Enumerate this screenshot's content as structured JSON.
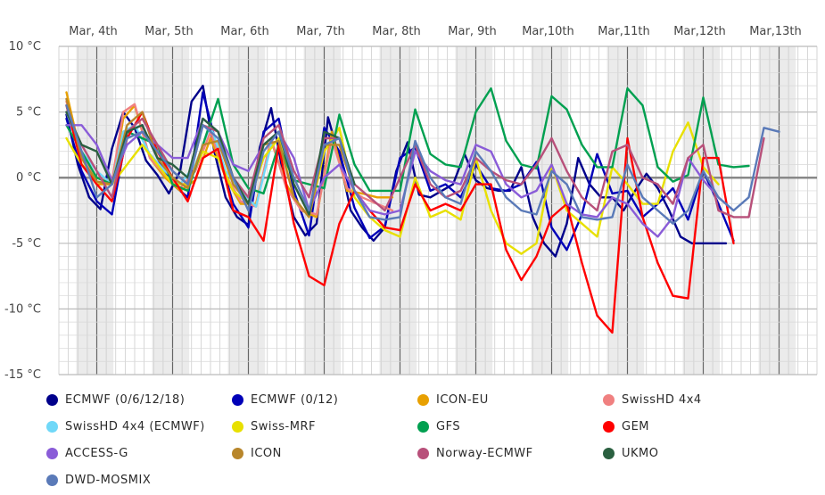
{
  "chart_data": {
    "type": "line",
    "title": "",
    "xlabel": "",
    "ylabel": "",
    "x_tick_labels": [
      "Mar, 4th",
      "Mar, 5th",
      "Mar, 6th",
      "Mar, 7th",
      "Mar, 8th",
      "Mar, 9th",
      "Mar,10th",
      "Mar,11th",
      "Mar,12th",
      "Mar,13th"
    ],
    "y_tick_labels": [
      "10 °C",
      "5 °C",
      "0 °C",
      "-5 °C",
      "-10 °C",
      "-15 °C"
    ],
    "y_ticks": [
      10,
      5,
      0,
      -5,
      -10,
      -15
    ],
    "xlim_days": [
      3.5,
      13.5
    ],
    "ylim": [
      -15,
      10
    ],
    "grid": true,
    "legend_position": "bottom",
    "series": [
      {
        "name": "ECMWF (0/6/12/18)",
        "color": "#00008b",
        "x": [
          3.6,
          3.75,
          3.9,
          4.05,
          4.2,
          4.35,
          4.5,
          4.65,
          4.8,
          4.95,
          5.1,
          5.25,
          5.4,
          5.55,
          5.7,
          5.85,
          6.0,
          6.15,
          6.3,
          6.45,
          6.6,
          6.75,
          6.9,
          7.05,
          7.2,
          7.35,
          7.5,
          7.65,
          7.8,
          7.95,
          8.1,
          8.25,
          8.4,
          8.55,
          8.7,
          8.85,
          9.0,
          9.15,
          9.3,
          9.45,
          9.6,
          9.75,
          9.9,
          10.05,
          10.2,
          10.35,
          10.5,
          10.65,
          10.8,
          10.95,
          11.1,
          11.25,
          11.4,
          11.55,
          11.7,
          11.85,
          12.0,
          12.15,
          12.3
        ],
        "y": [
          4.8,
          1.0,
          -1.5,
          -2.4,
          2.2,
          5.0,
          3.8,
          1.3,
          0.2,
          -1.2,
          0.5,
          5.8,
          7.0,
          2.0,
          -1.5,
          -3.0,
          -3.6,
          2.3,
          5.3,
          0.5,
          -3.0,
          -4.4,
          -3.5,
          4.6,
          1.5,
          -2.5,
          -3.8,
          -4.8,
          -3.8,
          0.5,
          2.7,
          -1.3,
          -1.5,
          -1.0,
          -0.5,
          1.8,
          -0.2,
          -0.8,
          -1.0,
          -1.0,
          0.8,
          -3.0,
          -5.0,
          -6.0,
          -3.5,
          1.5,
          -0.5,
          -1.5,
          -1.5,
          -2.5,
          -1.0,
          0.3,
          -0.8,
          -2.5,
          -4.5,
          -5.0,
          -5.0,
          -5.0,
          -5.0
        ]
      },
      {
        "name": "ECMWF (0/12)",
        "color": "#0000b8",
        "x": [
          3.6,
          3.8,
          4.0,
          4.2,
          4.4,
          4.6,
          4.8,
          5.0,
          5.2,
          5.4,
          5.6,
          5.8,
          6.0,
          6.2,
          6.4,
          6.6,
          6.8,
          7.0,
          7.2,
          7.4,
          7.6,
          7.8,
          8.0,
          8.2,
          8.4,
          8.6,
          8.8,
          9.0,
          9.2,
          9.4,
          9.6,
          9.8,
          10.0,
          10.2,
          10.4,
          10.6,
          10.8,
          11.0,
          11.2,
          11.4,
          11.6,
          11.8,
          12.0,
          12.2,
          12.4
        ],
        "y": [
          4.5,
          0.5,
          -1.8,
          -2.8,
          3.5,
          4.0,
          1.5,
          -0.5,
          -1.5,
          6.5,
          2.0,
          -2.0,
          -3.8,
          3.5,
          4.5,
          -1.0,
          -4.4,
          3.8,
          2.0,
          -2.3,
          -4.6,
          -3.7,
          1.5,
          2.3,
          -1.0,
          -0.5,
          -1.5,
          1.0,
          -0.8,
          -1.0,
          -0.5,
          1.2,
          -3.8,
          -5.5,
          -2.8,
          1.8,
          -1.2,
          -1.0,
          -3.0,
          -2.0,
          -0.8,
          -3.2,
          0.5,
          -2.0,
          -4.8
        ]
      },
      {
        "name": "ICON-EU",
        "color": "#e8a000",
        "x": [
          3.6,
          3.8,
          4.0,
          4.2,
          4.35,
          4.5,
          4.7,
          4.9,
          5.1,
          5.3,
          5.5,
          5.7,
          5.9,
          6.1,
          6.3,
          6.5,
          6.7,
          6.9,
          7.1,
          7.3,
          7.5,
          7.7,
          7.9
        ],
        "y": [
          6.5,
          1.5,
          -0.5,
          -0.5,
          4.5,
          5.5,
          1.5,
          0.0,
          -1.0,
          -0.2,
          3.0,
          0.0,
          -2.0,
          -2.0,
          2.8,
          -0.5,
          -2.5,
          -3.0,
          3.5,
          -1.0,
          -1.2,
          -1.5,
          -1.5
        ]
      },
      {
        "name": "SwissHD 4x4",
        "color": "#f08080",
        "x": [
          3.6,
          3.8,
          4.0,
          4.2,
          4.35,
          4.5,
          4.7,
          4.9,
          5.1,
          5.3,
          5.5,
          5.7,
          5.9,
          6.1,
          6.3,
          6.5,
          6.7,
          6.9,
          7.1,
          7.3,
          7.5,
          7.7,
          7.9
        ],
        "y": [
          5.8,
          1.8,
          0.0,
          -0.3,
          5.0,
          5.6,
          1.5,
          0.2,
          -0.8,
          0.5,
          3.5,
          0.2,
          -1.8,
          -2.2,
          3.0,
          -0.8,
          -2.5,
          -2.8,
          3.0,
          -0.8,
          -1.5,
          -2.0,
          -2.5
        ]
      },
      {
        "name": "SwissHD 4x4 (ECMWF)",
        "color": "#70d8f8",
        "x": [
          3.6,
          3.8,
          4.0,
          4.2,
          4.35,
          4.5,
          4.7,
          4.9,
          5.1,
          5.3,
          5.5,
          5.7,
          5.9,
          6.1,
          6.3
        ],
        "y": [
          5.0,
          2.0,
          0.5,
          -0.5,
          3.5,
          4.0,
          1.8,
          0.5,
          -0.5,
          1.0,
          4.0,
          0.5,
          -1.0,
          -2.2,
          2.5
        ]
      },
      {
        "name": "Swiss-MRF",
        "color": "#e8e000",
        "x": [
          3.6,
          3.8,
          4.0,
          4.2,
          4.4,
          4.6,
          4.8,
          5.0,
          5.2,
          5.4,
          5.6,
          5.8,
          6.0,
          6.2,
          6.4,
          6.6,
          6.8,
          7.0,
          7.2,
          7.4,
          7.6,
          7.8,
          8.0,
          8.2,
          8.4,
          8.6,
          8.8,
          9.0,
          9.2,
          9.4,
          9.6,
          9.8,
          10.0,
          10.2,
          10.4,
          10.6,
          10.8,
          11.0,
          11.2,
          11.4,
          11.6,
          11.8,
          12.0,
          12.2
        ],
        "y": [
          3.0,
          1.0,
          0.0,
          -0.5,
          1.0,
          2.5,
          1.0,
          -0.5,
          -0.5,
          2.0,
          1.5,
          -1.0,
          -2.0,
          1.5,
          3.0,
          -1.5,
          -3.0,
          2.0,
          3.8,
          -1.5,
          -3.0,
          -4.0,
          -4.5,
          0.0,
          -3.0,
          -2.5,
          -3.2,
          1.5,
          -2.5,
          -5.0,
          -5.8,
          -5.0,
          1.0,
          -2.5,
          -3.5,
          -4.5,
          0.8,
          -0.5,
          -2.0,
          -2.0,
          2.0,
          4.2,
          0.8,
          -0.5
        ]
      },
      {
        "name": "GFS",
        "color": "#00a050",
        "x": [
          3.6,
          3.8,
          4.0,
          4.2,
          4.4,
          4.6,
          4.8,
          5.0,
          5.2,
          5.4,
          5.6,
          5.8,
          6.0,
          6.2,
          6.4,
          6.6,
          6.8,
          7.0,
          7.2,
          7.4,
          7.6,
          7.8,
          8.0,
          8.2,
          8.4,
          8.6,
          8.8,
          9.0,
          9.2,
          9.4,
          9.6,
          9.8,
          10.0,
          10.2,
          10.4,
          10.6,
          10.8,
          11.0,
          11.2,
          11.4,
          11.6,
          11.8,
          12.0,
          12.2,
          12.4,
          12.6
        ],
        "y": [
          4.0,
          2.0,
          0.0,
          -0.5,
          3.5,
          3.0,
          2.5,
          -0.5,
          -1.0,
          2.5,
          6.0,
          1.0,
          -0.8,
          -1.2,
          2.5,
          -0.2,
          -0.5,
          -0.8,
          4.8,
          1.0,
          -1.0,
          -1.0,
          -1.0,
          5.2,
          1.8,
          1.0,
          0.8,
          5.0,
          6.8,
          2.8,
          1.0,
          0.7,
          6.2,
          5.2,
          2.5,
          0.8,
          0.8,
          6.8,
          5.5,
          0.8,
          -0.3,
          0.2,
          6.1,
          1.0,
          0.8,
          0.9
        ]
      },
      {
        "name": "GEM",
        "color": "#ff0000",
        "x": [
          3.6,
          3.8,
          4.0,
          4.2,
          4.4,
          4.6,
          4.8,
          5.0,
          5.2,
          5.4,
          5.6,
          5.8,
          6.0,
          6.2,
          6.4,
          6.6,
          6.8,
          7.0,
          7.2,
          7.4,
          7.6,
          7.8,
          8.0,
          8.2,
          8.4,
          8.6,
          8.8,
          9.0,
          9.2,
          9.4,
          9.6,
          9.8,
          10.0,
          10.2,
          10.4,
          10.6,
          10.8,
          11.0,
          11.2,
          11.4,
          11.6,
          11.8,
          12.0,
          12.2,
          12.4
        ],
        "y": [
          5.5,
          1.0,
          -0.5,
          -1.8,
          3.0,
          5.0,
          2.0,
          0.0,
          -1.8,
          1.5,
          2.2,
          -2.5,
          -3.0,
          -4.8,
          2.5,
          -3.5,
          -7.5,
          -8.2,
          -3.5,
          -1.0,
          -2.5,
          -3.8,
          -4.0,
          -0.5,
          -2.5,
          -2.0,
          -2.5,
          -0.5,
          -0.5,
          -5.5,
          -7.8,
          -6.0,
          -3.0,
          -2.0,
          -6.5,
          -10.5,
          -11.8,
          3.0,
          -3.0,
          -6.5,
          -9.0,
          -9.2,
          1.5,
          1.5,
          -5.0
        ]
      },
      {
        "name": "ACCESS-G",
        "color": "#8a5cd8",
        "x": [
          3.6,
          3.8,
          4.0,
          4.2,
          4.4,
          4.6,
          4.8,
          5.0,
          5.2,
          5.4,
          5.6,
          5.8,
          6.0,
          6.2,
          6.4,
          6.6,
          6.8,
          7.0,
          7.2,
          7.4,
          7.6,
          7.8,
          8.0,
          8.2,
          8.4,
          8.6,
          8.8,
          9.0,
          9.2,
          9.4,
          9.6,
          9.8,
          10.0,
          10.2,
          10.4,
          10.6,
          10.8,
          11.0,
          11.2,
          11.4,
          11.6,
          11.8,
          12.0,
          12.2,
          12.4
        ],
        "y": [
          4.0,
          4.0,
          2.5,
          -0.2,
          2.5,
          3.5,
          2.5,
          1.5,
          1.5,
          4.5,
          3.5,
          1.0,
          0.5,
          2.5,
          3.5,
          1.5,
          -2.5,
          0.0,
          1.0,
          -1.0,
          -2.5,
          -2.8,
          -2.5,
          2.0,
          0.5,
          -0.2,
          -0.5,
          2.5,
          2.0,
          -0.5,
          -1.5,
          -1.0,
          1.0,
          -2.0,
          -2.8,
          -3.0,
          -1.5,
          -2.0,
          -3.5,
          -4.5,
          -3.0,
          1.5,
          -0.2,
          -1.5,
          -2.5
        ]
      },
      {
        "name": "ICON",
        "color": "#b8862b",
        "x": [
          3.6,
          3.8,
          4.0,
          4.2,
          4.4,
          4.6,
          4.8,
          5.0,
          5.2,
          5.4,
          5.6,
          5.8,
          6.0,
          6.2,
          6.4,
          6.6,
          6.8,
          7.0,
          7.2,
          7.4
        ],
        "y": [
          6.0,
          1.5,
          -0.3,
          -0.5,
          4.0,
          5.0,
          1.5,
          0.0,
          -0.8,
          2.5,
          2.8,
          -0.5,
          -2.0,
          2.5,
          2.8,
          -1.5,
          -3.0,
          2.5,
          2.5,
          -1.0
        ]
      },
      {
        "name": "Norway-ECMWF",
        "color": "#b8507a",
        "x": [
          3.6,
          3.8,
          4.0,
          4.2,
          4.4,
          4.6,
          4.8,
          5.0,
          5.2,
          5.4,
          5.6,
          5.8,
          6.0,
          6.2,
          6.4,
          6.6,
          6.8,
          7.0,
          7.2,
          7.4,
          7.6,
          7.8,
          8.0,
          8.2,
          8.4,
          8.6,
          8.8,
          9.0,
          9.2,
          9.4,
          9.6,
          9.8,
          10.0,
          10.2,
          10.4,
          10.6,
          10.8,
          11.0,
          11.2,
          11.4,
          11.6,
          11.8,
          12.0,
          12.2,
          12.4,
          12.6,
          12.8
        ],
        "y": [
          5.0,
          2.5,
          0.5,
          -1.5,
          3.5,
          4.5,
          2.5,
          0.5,
          -0.5,
          4.0,
          3.5,
          0.0,
          -1.5,
          3.0,
          4.0,
          0.5,
          -1.5,
          3.0,
          3.0,
          -0.5,
          -1.5,
          -2.5,
          0.0,
          2.5,
          -0.5,
          -1.5,
          -1.0,
          1.5,
          0.5,
          -0.2,
          -0.5,
          1.0,
          3.0,
          0.5,
          -1.5,
          -2.5,
          2.0,
          2.5,
          0.0,
          -0.5,
          -2.0,
          1.5,
          2.5,
          -2.5,
          -3.0,
          -3.0,
          3.0
        ]
      },
      {
        "name": "UKMO",
        "color": "#2a6040",
        "x": [
          3.6,
          3.8,
          4.0,
          4.2,
          4.4,
          4.6,
          4.8,
          5.0,
          5.2,
          5.4,
          5.6,
          5.8,
          6.0,
          6.2,
          6.4,
          6.6,
          6.8,
          7.0,
          7.2,
          7.4
        ],
        "y": [
          5.0,
          2.5,
          2.0,
          -0.5,
          3.5,
          4.0,
          1.5,
          1.0,
          0.0,
          4.5,
          3.5,
          0.0,
          -2.0,
          2.5,
          3.5,
          -0.5,
          -2.8,
          3.5,
          3.0,
          -0.5
        ]
      },
      {
        "name": "DWD-MOSMIX",
        "color": "#5a7ab8",
        "x": [
          3.6,
          3.8,
          4.0,
          4.2,
          4.4,
          4.6,
          4.8,
          5.0,
          5.2,
          5.4,
          5.6,
          5.8,
          6.0,
          6.2,
          6.4,
          6.6,
          6.8,
          7.0,
          7.2,
          7.4,
          7.6,
          7.8,
          8.0,
          8.2,
          8.4,
          8.6,
          8.8,
          9.0,
          9.2,
          9.4,
          9.6,
          9.8,
          10.0,
          10.2,
          10.4,
          10.6,
          10.8,
          11.0,
          11.2,
          11.4,
          11.6,
          11.8,
          12.0,
          12.2,
          12.4,
          12.6,
          12.8,
          13.0
        ],
        "y": [
          5.5,
          2.0,
          -1.5,
          -0.5,
          3.0,
          3.5,
          2.0,
          0.5,
          -0.5,
          4.0,
          3.0,
          0.0,
          -2.5,
          2.0,
          3.5,
          0.0,
          -2.5,
          2.5,
          3.0,
          -1.0,
          -3.0,
          -3.2,
          -3.0,
          2.8,
          0.0,
          -1.5,
          -2.0,
          2.0,
          0.5,
          -1.5,
          -2.5,
          -2.8,
          0.5,
          -0.5,
          -3.0,
          -3.2,
          -3.0,
          1.0,
          -1.5,
          -2.5,
          -3.5,
          -2.5,
          0.5,
          -1.5,
          -2.5,
          -1.5,
          3.8,
          3.5
        ]
      }
    ]
  }
}
